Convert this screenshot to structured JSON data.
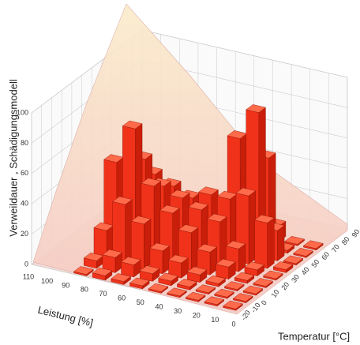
{
  "chart_data": {
    "type": "bar3d",
    "xlabel": "Leistung [%]",
    "ylabel": "Temperatur [°C]",
    "zlabel": "Verweildauer , Schädigungsmodell",
    "xlim": [
      0,
      110
    ],
    "ylim": [
      -20,
      90
    ],
    "zlim": [
      0,
      100
    ],
    "xticks": [
      110,
      100,
      90,
      80,
      70,
      60,
      50,
      40,
      30,
      20,
      10,
      0
    ],
    "yticks": [
      -20,
      -10,
      0,
      10,
      20,
      30,
      40,
      50,
      60,
      70,
      80,
      90
    ],
    "zticks": [
      0,
      20,
      40,
      60,
      80,
      100
    ],
    "x": [
      0,
      10,
      20,
      30,
      40,
      50,
      60,
      70,
      80
    ],
    "y": [
      -20,
      -10,
      0,
      10,
      20,
      30,
      40,
      50,
      60
    ],
    "values": [
      [
        1,
        1,
        1,
        1,
        1,
        2,
        1,
        1,
        1
      ],
      [
        1,
        1,
        1,
        2,
        4,
        30,
        20,
        2,
        1
      ],
      [
        1,
        1,
        2,
        8,
        15,
        45,
        95,
        60,
        10
      ],
      [
        1,
        2,
        5,
        15,
        30,
        40,
        75,
        45,
        20
      ],
      [
        1,
        3,
        10,
        25,
        35,
        40,
        30,
        20,
        5
      ],
      [
        2,
        5,
        15,
        35,
        40,
        35,
        25,
        10,
        2
      ],
      [
        2,
        8,
        30,
        50,
        45,
        40,
        20,
        5,
        1
      ],
      [
        3,
        10,
        40,
        85,
        60,
        45,
        15,
        2,
        1
      ],
      [
        1,
        5,
        20,
        60,
        50,
        20,
        5,
        1,
        1
      ]
    ],
    "color": "#f0321a",
    "grid": true
  }
}
